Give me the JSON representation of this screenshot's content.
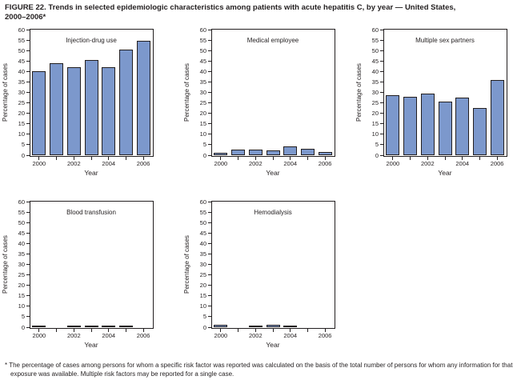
{
  "header": {
    "title_line1": "FIGURE 22. Trends in selected epidemiologic characteristics among patients with acute hepatitis C, by year — United States,",
    "title_line2": "2000–2006*"
  },
  "footnote": {
    "marker": "*",
    "text": "The percentage of cases among persons for whom a specific risk factor was reported was calculated on the basis of the total number of persons for whom any information for that exposure was available. Multiple risk factors may be reported for a single case."
  },
  "colors": {
    "bar_fill": "#7c98cc",
    "bar_border": "#231f20",
    "axis_color": "#231f20",
    "text_color": "#231f20",
    "background": "#ffffff"
  },
  "chart_data": [
    {
      "type": "bar",
      "title": "Injection-drug use",
      "ylabel": "Percentage of cases",
      "xlabel": "Year",
      "ylim": [
        0,
        60
      ],
      "ytick_step": 5,
      "grid": false,
      "categories": [
        "2000",
        "2001",
        "2002",
        "2003",
        "2004",
        "2005",
        "2006"
      ],
      "xtick_labels_shown": [
        "2000",
        "2002",
        "2004",
        "2006"
      ],
      "values": [
        40,
        44,
        42,
        45.5,
        42,
        50.5,
        54.5
      ]
    },
    {
      "type": "bar",
      "title": "Medical employee",
      "ylabel": "Percentage of cases",
      "xlabel": "Year",
      "ylim": [
        0,
        60
      ],
      "ytick_step": 5,
      "grid": false,
      "categories": [
        "2000",
        "2001",
        "2002",
        "2003",
        "2004",
        "2005",
        "2006"
      ],
      "xtick_labels_shown": [
        "2000",
        "2002",
        "2004",
        "2006"
      ],
      "values": [
        1,
        2.5,
        2.5,
        2.2,
        4.2,
        3.2,
        1.6
      ]
    },
    {
      "type": "bar",
      "title": "Multiple sex partners",
      "ylabel": "Percentage of cases",
      "xlabel": "Year",
      "ylim": [
        0,
        60
      ],
      "ytick_step": 5,
      "grid": false,
      "categories": [
        "2000",
        "2001",
        "2002",
        "2003",
        "2004",
        "2005",
        "2006"
      ],
      "xtick_labels_shown": [
        "2000",
        "2002",
        "2004",
        "2006"
      ],
      "values": [
        28.5,
        28,
        29.5,
        25.5,
        27.5,
        22.5,
        36
      ]
    },
    {
      "type": "bar",
      "title": "Blood transfusion",
      "ylabel": "Percentage of cases",
      "xlabel": "Year",
      "ylim": [
        0,
        60
      ],
      "ytick_step": 5,
      "grid": false,
      "categories": [
        "2000",
        "2001",
        "2002",
        "2003",
        "2004",
        "2005",
        "2006"
      ],
      "xtick_labels_shown": [
        "2000",
        "2002",
        "2004",
        "2006"
      ],
      "values": [
        0.8,
        0,
        0.5,
        0.8,
        0.7,
        0.9,
        0
      ]
    },
    {
      "type": "bar",
      "title": "Hemodialysis",
      "ylabel": "Percentage of cases",
      "xlabel": "Year",
      "ylim": [
        0,
        60
      ],
      "ytick_step": 5,
      "grid": false,
      "categories": [
        "2000",
        "2001",
        "2002",
        "2003",
        "2004",
        "2005",
        "2006"
      ],
      "xtick_labels_shown": [
        "2000",
        "2002",
        "2004",
        "2006"
      ],
      "values": [
        1.3,
        0,
        0.7,
        1.3,
        0.8,
        0,
        0
      ]
    }
  ]
}
